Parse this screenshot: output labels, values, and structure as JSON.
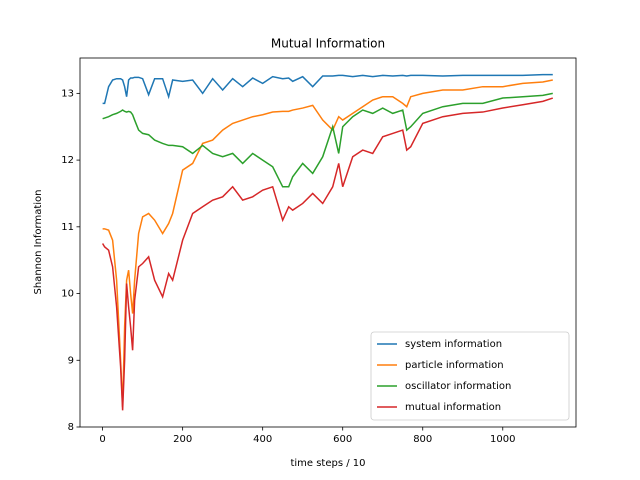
{
  "chart_data": {
    "type": "line",
    "title": "Mutual Information",
    "x_label": "time steps / 10",
    "y_label": "Shannon Information",
    "x": [
      0,
      5,
      15,
      25,
      35,
      45,
      50,
      55,
      60,
      65,
      70,
      75,
      80,
      90,
      100,
      115,
      130,
      150,
      165,
      175,
      200,
      225,
      250,
      275,
      300,
      325,
      350,
      375,
      400,
      425,
      450,
      465,
      475,
      500,
      525,
      550,
      575,
      590,
      600,
      625,
      650,
      675,
      700,
      725,
      750,
      760,
      770,
      800,
      850,
      900,
      950,
      1000,
      1050,
      1100,
      1125
    ],
    "series": [
      {
        "name": "system information",
        "color": "#1f77b4",
        "values": [
          12.85,
          12.85,
          13.1,
          13.2,
          13.22,
          13.22,
          13.2,
          13.1,
          12.95,
          13.2,
          13.23,
          13.23,
          13.24,
          13.24,
          13.22,
          12.98,
          13.22,
          13.22,
          12.95,
          13.2,
          13.18,
          13.2,
          13.0,
          13.22,
          13.05,
          13.22,
          13.1,
          13.23,
          13.15,
          13.25,
          13.22,
          13.23,
          13.18,
          13.25,
          13.1,
          13.26,
          13.26,
          13.27,
          13.27,
          13.25,
          13.27,
          13.25,
          13.27,
          13.26,
          13.27,
          13.26,
          13.27,
          13.27,
          13.26,
          13.27,
          13.27,
          13.27,
          13.27,
          13.28,
          13.28
        ]
      },
      {
        "name": "particle information",
        "color": "#ff7f0e",
        "values": [
          10.97,
          10.97,
          10.95,
          10.8,
          10.2,
          9.0,
          8.3,
          9.5,
          10.2,
          10.35,
          10.0,
          9.7,
          10.2,
          10.9,
          11.15,
          11.2,
          11.1,
          10.9,
          11.05,
          11.2,
          11.85,
          11.95,
          12.25,
          12.3,
          12.45,
          12.55,
          12.6,
          12.65,
          12.68,
          12.72,
          12.73,
          12.73,
          12.75,
          12.78,
          12.82,
          12.6,
          12.45,
          12.65,
          12.6,
          12.7,
          12.8,
          12.9,
          12.95,
          12.95,
          12.85,
          12.8,
          12.95,
          13.0,
          13.05,
          13.05,
          13.1,
          13.1,
          13.15,
          13.17,
          13.2
        ]
      },
      {
        "name": "oscillator information",
        "color": "#2ca02c",
        "values": [
          12.62,
          12.63,
          12.65,
          12.68,
          12.7,
          12.73,
          12.75,
          12.73,
          12.72,
          12.73,
          12.72,
          12.68,
          12.6,
          12.45,
          12.4,
          12.38,
          12.3,
          12.25,
          12.22,
          12.22,
          12.2,
          12.1,
          12.22,
          12.1,
          12.05,
          12.1,
          11.95,
          12.1,
          12.0,
          11.9,
          11.6,
          11.6,
          11.75,
          11.95,
          11.8,
          12.05,
          12.5,
          12.1,
          12.5,
          12.65,
          12.75,
          12.7,
          12.78,
          12.7,
          12.75,
          12.45,
          12.5,
          12.7,
          12.8,
          12.85,
          12.85,
          12.93,
          12.95,
          12.97,
          13.0
        ]
      },
      {
        "name": "mutual information",
        "color": "#d62728",
        "values": [
          10.75,
          10.7,
          10.65,
          10.4,
          9.8,
          8.9,
          8.25,
          9.0,
          10.15,
          9.8,
          9.5,
          9.15,
          9.9,
          10.4,
          10.45,
          10.55,
          10.2,
          9.95,
          10.3,
          10.2,
          10.8,
          11.2,
          11.3,
          11.4,
          11.45,
          11.6,
          11.4,
          11.45,
          11.55,
          11.6,
          11.1,
          11.3,
          11.25,
          11.35,
          11.5,
          11.35,
          11.6,
          11.95,
          11.6,
          12.05,
          12.15,
          12.1,
          12.35,
          12.4,
          12.45,
          12.15,
          12.2,
          12.55,
          12.65,
          12.7,
          12.72,
          12.78,
          12.83,
          12.88,
          12.93
        ]
      }
    ],
    "xlim": [
      -56.5,
      1183
    ],
    "ylim": [
      8.0,
      13.53
    ],
    "xticks": [
      0,
      200,
      400,
      600,
      800,
      1000
    ],
    "yticks": [
      8,
      9,
      10,
      11,
      12,
      13
    ],
    "legend": "lower right",
    "grid": false
  }
}
